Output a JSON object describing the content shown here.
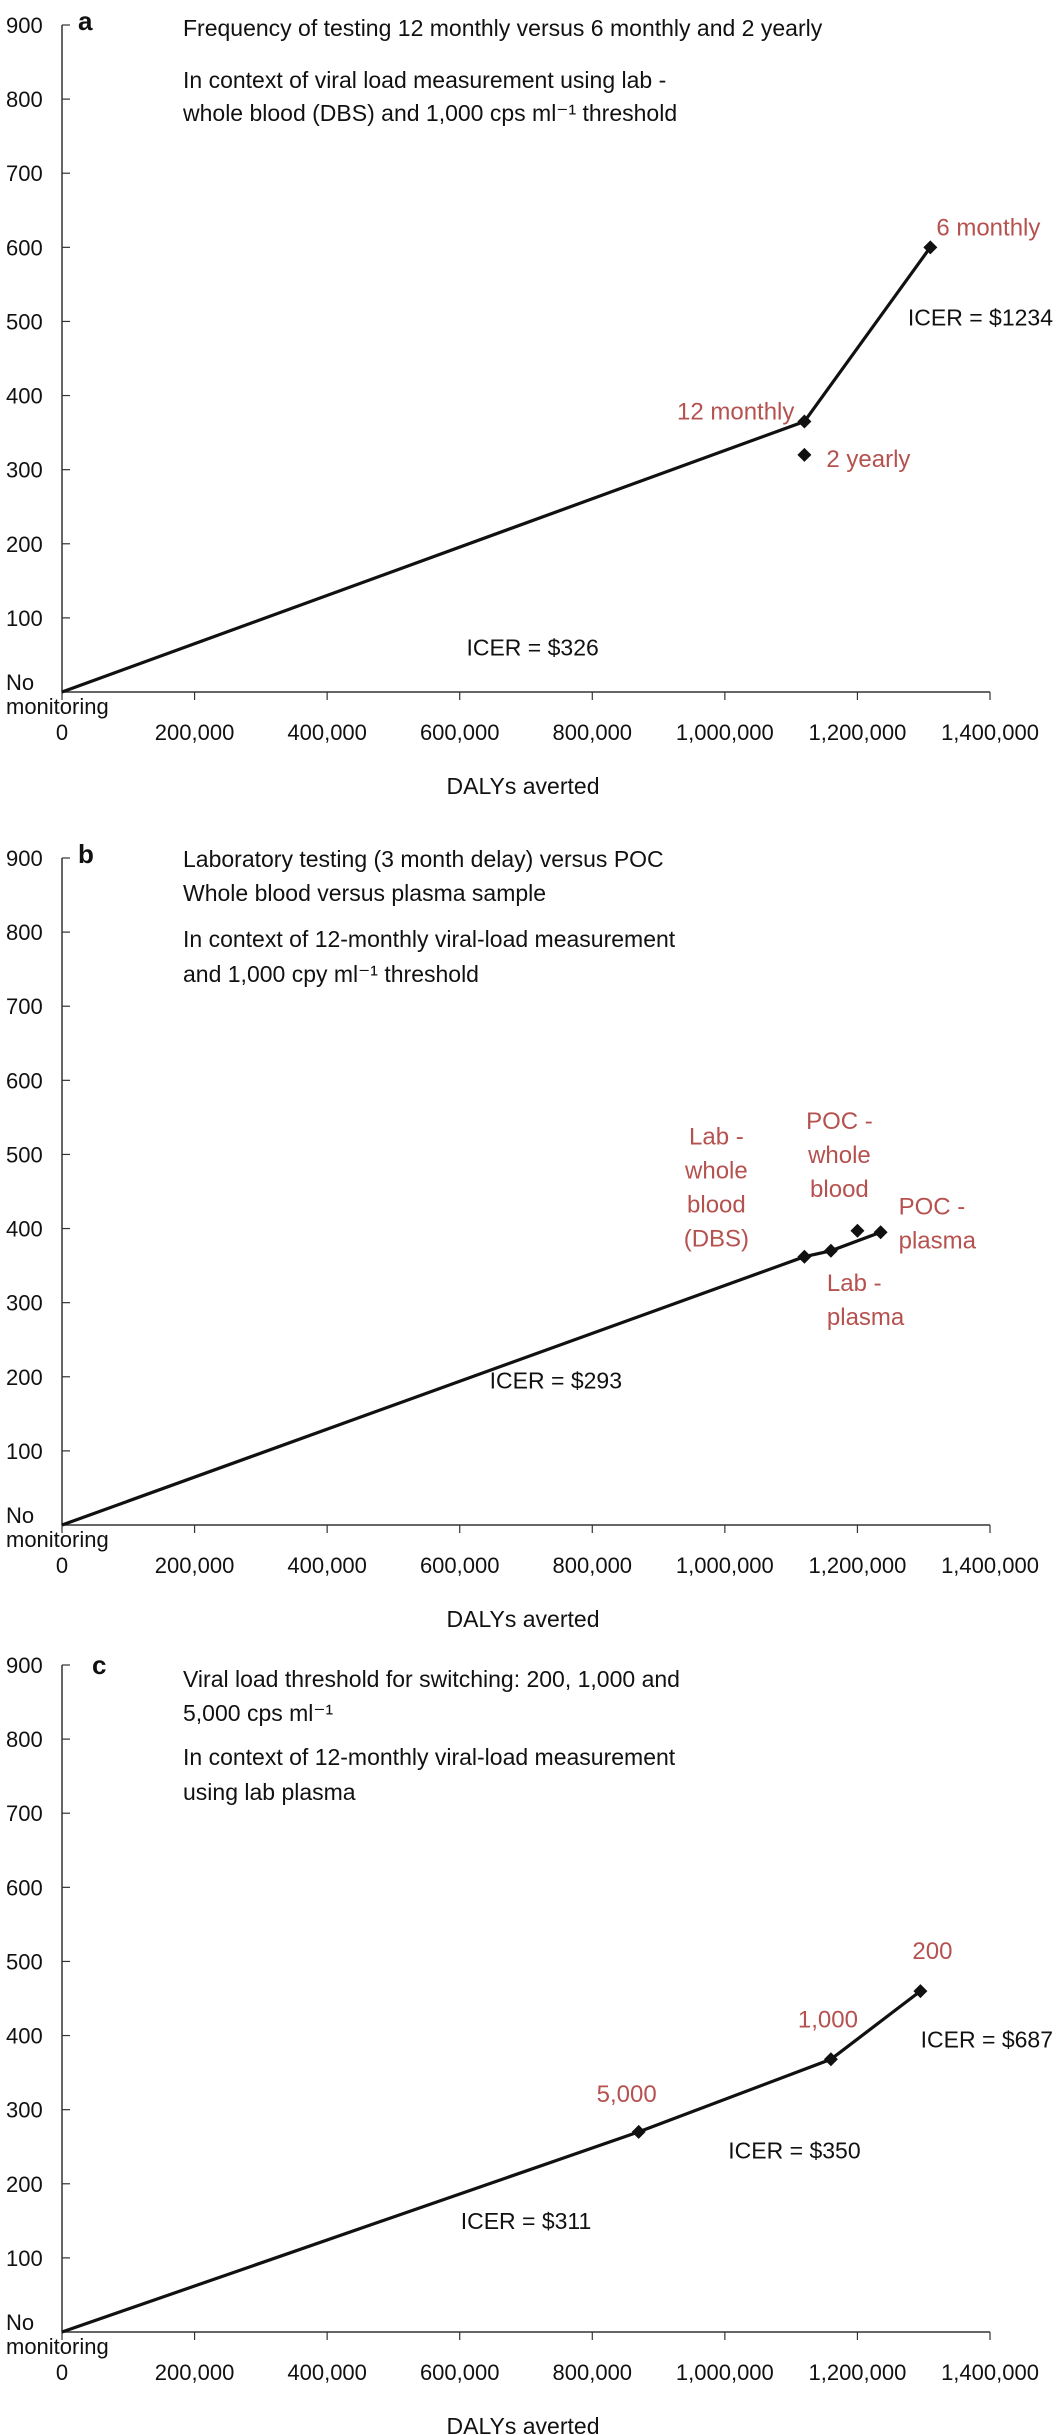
{
  "chart_data": [
    {
      "type": "line",
      "panel": "a",
      "annotations": [
        "Frequency of testing 12 monthly versus 6 monthly and 2 yearly",
        "In context of viral load measurement using lab -",
        "whole blood (DBS) and 1,000 cps ml⁻¹ threshold"
      ],
      "xlabel": "DALYs averted",
      "ylabel": "",
      "xlim": [
        0,
        1400000
      ],
      "ylim": [
        0,
        900
      ],
      "xticks": [
        "0",
        "200,000",
        "400,000",
        "600,000",
        "800,000",
        "1,000,000",
        "1,200,000",
        "1,400,000"
      ],
      "yticks": [
        "100",
        "200",
        "300",
        "400",
        "500",
        "600",
        "700",
        "800",
        "900"
      ],
      "origin_label": [
        "No",
        "monitoring"
      ],
      "frontier": [
        [
          0,
          0
        ],
        [
          1120000,
          365
        ],
        [
          1310000,
          600
        ]
      ],
      "points": [
        {
          "label": "12 monthly",
          "lines": [
            "12 monthly"
          ],
          "x": 1120000,
          "y": 365,
          "anchor": "end",
          "dx": -10,
          "dy": -2
        },
        {
          "label": "6 monthly",
          "lines": [
            "6 monthly"
          ],
          "x": 1310000,
          "y": 600,
          "anchor": "start",
          "dx": 6,
          "dy": -12
        },
        {
          "label": "2 yearly",
          "lines": [
            "2 yearly"
          ],
          "x": 1120000,
          "y": 320,
          "anchor": "start",
          "dx": 22,
          "dy": 12
        }
      ],
      "icers": [
        {
          "text": "ICER = $326",
          "x": 710000,
          "y": 60
        },
        {
          "text": "ICER = $1234",
          "x": 1400000,
          "y": 505
        }
      ]
    },
    {
      "type": "line",
      "panel": "b",
      "annotations": [
        "Laboratory testing (3 month delay) versus POC",
        "Whole blood versus plasma sample",
        "In context of 12-monthly viral-load measurement",
        "and 1,000 cpy ml⁻¹ threshold"
      ],
      "xlabel": "DALYs averted",
      "ylabel": "",
      "xlim": [
        0,
        1400000
      ],
      "ylim": [
        0,
        900
      ],
      "xticks": [
        "0",
        "200,000",
        "400,000",
        "600,000",
        "800,000",
        "1,000,000",
        "1,200,000",
        "1,400,000"
      ],
      "yticks": [
        "100",
        "200",
        "300",
        "400",
        "500",
        "600",
        "700",
        "800",
        "900"
      ],
      "origin_label": [
        "No",
        "monitoring"
      ],
      "frontier": [
        [
          0,
          0
        ],
        [
          1120000,
          362
        ],
        [
          1160000,
          370
        ],
        [
          1235000,
          395
        ]
      ],
      "points": [
        {
          "label": "Lab - whole blood (DBS)",
          "lines": [
            "Lab -",
            "whole",
            "blood",
            "(DBS)"
          ],
          "x": 1120000,
          "y": 362,
          "anchor": "middle",
          "dx": -88,
          "dy": -112
        },
        {
          "label": "Lab - plasma",
          "lines": [
            "Lab -",
            "plasma"
          ],
          "x": 1160000,
          "y": 370,
          "anchor": "start",
          "dx": -4,
          "dy": 40
        },
        {
          "label": "POC - whole blood",
          "lines": [
            "POC -",
            "whole",
            "blood"
          ],
          "x": 1200000,
          "y": 397,
          "anchor": "middle",
          "dx": -18,
          "dy": -102
        },
        {
          "label": "POC - plasma",
          "lines": [
            "POC -",
            "plasma"
          ],
          "x": 1235000,
          "y": 395,
          "anchor": "start",
          "dx": 18,
          "dy": -18
        }
      ],
      "icers": [
        {
          "text": "ICER = $293",
          "x": 745000,
          "y": 195
        }
      ]
    },
    {
      "type": "line",
      "panel": "c",
      "annotations": [
        "Viral load threshold for switching: 200, 1,000 and",
        "5,000 cps ml⁻¹",
        "In context of 12-monthly viral-load measurement",
        "using lab plasma"
      ],
      "xlabel": "DALYs averted",
      "ylabel": "",
      "xlim": [
        0,
        1400000
      ],
      "ylim": [
        0,
        900
      ],
      "xticks": [
        "0",
        "200,000",
        "400,000",
        "600,000",
        "800,000",
        "1,000,000",
        "1,200,000",
        "1,400,000"
      ],
      "yticks": [
        "100",
        "200",
        "300",
        "400",
        "500",
        "600",
        "700",
        "800",
        "900"
      ],
      "origin_label": [
        "No",
        "monitoring"
      ],
      "frontier": [
        [
          0,
          0
        ],
        [
          870000,
          270
        ],
        [
          1160000,
          368
        ],
        [
          1295000,
          460
        ]
      ],
      "points": [
        {
          "label": "5,000",
          "lines": [
            "5,000"
          ],
          "x": 870000,
          "y": 270,
          "anchor": "middle",
          "dx": -12,
          "dy": -30
        },
        {
          "label": "1,000",
          "lines": [
            "1,000"
          ],
          "x": 1160000,
          "y": 368,
          "anchor": "middle",
          "dx": -3,
          "dy": -32
        },
        {
          "label": "200",
          "lines": [
            "200"
          ],
          "x": 1295000,
          "y": 460,
          "anchor": "middle",
          "dx": 12,
          "dy": -32
        }
      ],
      "icers": [
        {
          "text": "ICER = $311",
          "x": 700000,
          "y": 150
        },
        {
          "text": "ICER = $350",
          "x": 1105000,
          "y": 245
        },
        {
          "text": "ICER = $687",
          "x": 1400000,
          "y": 395
        }
      ]
    }
  ]
}
